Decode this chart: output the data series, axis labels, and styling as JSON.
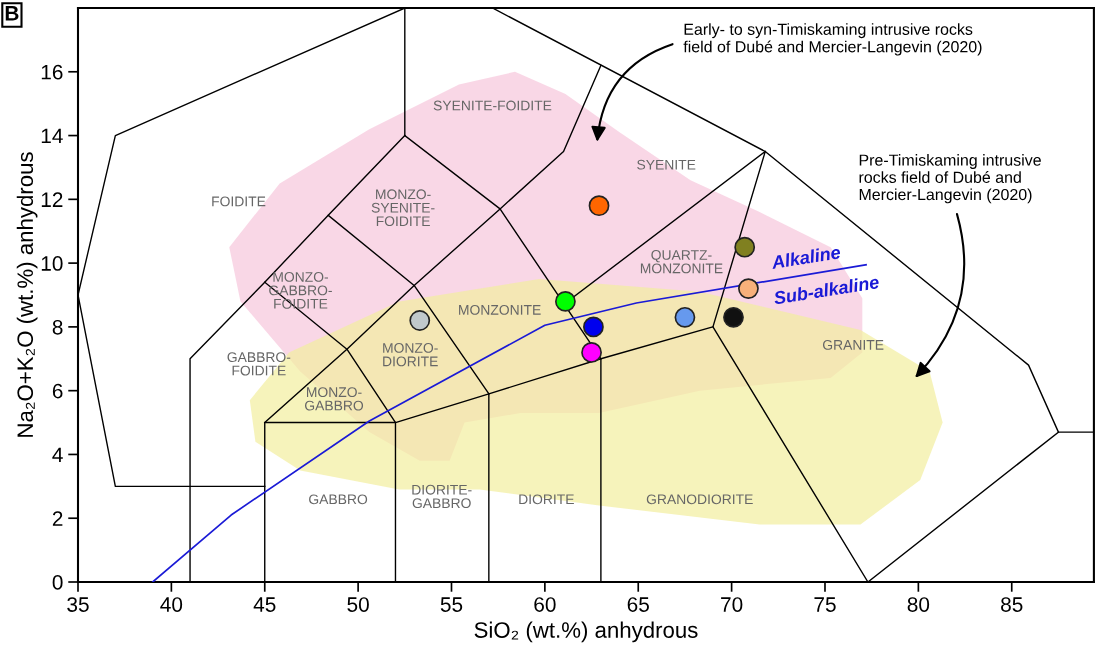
{
  "chart_data": {
    "type": "scatter",
    "xlabel": "SiO₂ (wt.%) anhydrous",
    "ylabel": "Na₂O+K₂O (wt.%) anhydrous",
    "xlim": [
      35,
      89.4
    ],
    "ylim": [
      0,
      18
    ],
    "xticks": [
      35,
      40,
      45,
      50,
      55,
      60,
      65,
      70,
      75,
      80,
      85
    ],
    "yticks": [
      0,
      2,
      4,
      6,
      8,
      10,
      12,
      14,
      16
    ],
    "grid": false,
    "series": [
      {
        "type": "area",
        "color": "#f7c6dc",
        "x": [
          43.1,
          45.8,
          50.6,
          55.4,
          58.4,
          61.1,
          64.0,
          67.8,
          71.5,
          75.3,
          77.0,
          77.0,
          75.3,
          68.3,
          62.9,
          58.7,
          55.7,
          54.9,
          53.3,
          50.6,
          46.9,
          43.7
        ],
        "values": [
          10.5,
          12.5,
          14.2,
          15.6,
          16.0,
          15.3,
          14.1,
          12.6,
          11.6,
          10.5,
          8.9,
          7.2,
          6.4,
          6.0,
          5.3,
          5.3,
          5.0,
          3.8,
          3.8,
          4.7,
          6.6,
          8.8
        ]
      },
      {
        "type": "area",
        "color": "#f2ee9e",
        "x": [
          44.2,
          46.3,
          52.2,
          59.7,
          68.3,
          76.9,
          80.6,
          81.3,
          80.1,
          76.9,
          71.5,
          62.9,
          56.5,
          52.2,
          46.9,
          44.5
        ],
        "values": [
          5.7,
          7.2,
          8.8,
          9.5,
          9.1,
          7.9,
          6.6,
          5.0,
          3.2,
          1.8,
          1.8,
          2.4,
          2.9,
          2.9,
          3.5,
          4.4
        ]
      },
      {
        "type": "line",
        "color": "#000000",
        "x": [
          52.5,
          37,
          35,
          37,
          45
        ],
        "values": [
          18,
          14,
          9,
          3,
          3
        ]
      },
      {
        "type": "line",
        "color": "#000000",
        "x": [
          52.5,
          52.5
        ],
        "values": [
          18,
          14
        ]
      },
      {
        "type": "line",
        "color": "#000000",
        "x": [
          57.2,
          71.8,
          85.9,
          87.5,
          89.4
        ],
        "values": [
          18,
          13.5,
          6.8,
          4.7,
          4.7
        ]
      },
      {
        "type": "line",
        "color": "#000000",
        "x": [
          87.5,
          77.3,
          69,
          71.8
        ],
        "values": [
          4.7,
          0,
          8,
          13.5
        ]
      },
      {
        "type": "line",
        "color": "#000000",
        "x": [
          41,
          41,
          45,
          48.4,
          52.5
        ],
        "values": [
          0,
          7,
          9.4,
          11.5,
          14
        ]
      },
      {
        "type": "line",
        "color": "#000000",
        "x": [
          45,
          49.4,
          52
        ],
        "values": [
          9.4,
          7.3,
          5
        ]
      },
      {
        "type": "line",
        "color": "#000000",
        "x": [
          48.4,
          53,
          57
        ],
        "values": [
          11.5,
          9.3,
          5.9
        ]
      },
      {
        "type": "line",
        "color": "#000000",
        "x": [
          52.5,
          57.6,
          63
        ],
        "values": [
          14,
          11.7,
          7
        ]
      },
      {
        "type": "line",
        "color": "#000000",
        "x": [
          45,
          49.4,
          53,
          57.6,
          61,
          63
        ],
        "values": [
          5,
          7.3,
          9.3,
          11.7,
          13.5,
          16.2
        ]
      },
      {
        "type": "line",
        "color": "#000000",
        "x": [
          45,
          45,
          52,
          57,
          63,
          69
        ],
        "values": [
          0,
          5,
          5,
          5.9,
          7,
          8
        ]
      },
      {
        "type": "line",
        "color": "#000000",
        "x": [
          52,
          52
        ],
        "values": [
          0,
          5
        ]
      },
      {
        "type": "line",
        "color": "#000000",
        "x": [
          57,
          57
        ],
        "values": [
          0,
          5.9
        ]
      },
      {
        "type": "line",
        "color": "#000000",
        "x": [
          63,
          63
        ],
        "values": [
          0,
          7
        ]
      },
      {
        "type": "line",
        "color": "#000000",
        "x": [
          61,
          71.8
        ],
        "values": [
          8.7,
          13.5
        ]
      },
      {
        "type": "line",
        "color": "#1a1ad6",
        "x": [
          39.0,
          43.2,
          50.6,
          60.0,
          64.9,
          77.2
        ],
        "values": [
          0,
          2.1,
          5.05,
          8.05,
          8.75,
          9.95
        ]
      },
      {
        "marker": "circle",
        "x": [
          62.9,
          70.7,
          70.9,
          61.1,
          62.6,
          67.5,
          70.1,
          62.5,
          53.3
        ],
        "values": [
          11.8,
          10.5,
          9.2,
          8.8,
          8.0,
          8.3,
          8.3,
          7.2,
          8.2
        ],
        "colors": [
          "#ff6600",
          "#808020",
          "#f7b07a",
          "#00ff00",
          "#0000ee",
          "#6699ee",
          "#111111",
          "#ff00ff",
          "#c0c8cc"
        ]
      }
    ],
    "annotations": [
      "B",
      "Early- to syn-Timiskaming intrusive rocks\nfield of Dubé and Mercier-Langevin (2020)",
      "Pre-Timiskaming intrusive\nrocks field of Dubé and\nMercier-Langevin (2020)",
      "FOIDITE",
      "SYENITE-FOIDITE",
      "SYENITE",
      "MONZO-\nSYENITE-\nFOIDITE",
      "MONZO-\nGABBRO-\nFOIDITE",
      "QUARTZ-\nMONZONITE",
      "MONZONITE",
      "MONZO-\nDIORITE",
      "GABBRO-\nFOIDITE",
      "MONZO-\nGABBRO",
      "GRANITE",
      "GABBRO",
      "DIORITE-\nGABBRO",
      "DIORITE",
      "GRANODIORITE",
      "Alkaline",
      "Sub-alkaline"
    ]
  }
}
